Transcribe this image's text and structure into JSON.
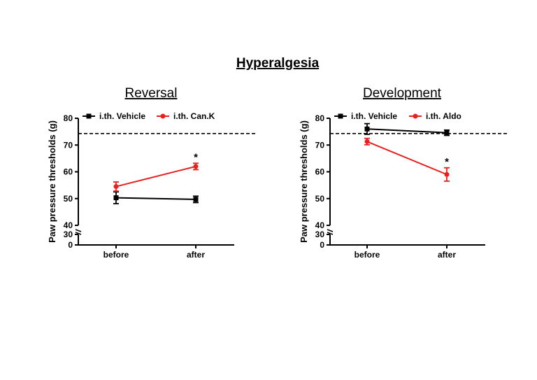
{
  "page_title": "Hyperalgesia",
  "chart_data": [
    {
      "type": "line",
      "title": "Reversal",
      "xlabel": "",
      "ylabel": "Paw pressure thresholds (g)",
      "categories": [
        "before",
        "after"
      ],
      "y_break": {
        "lower_range": [
          0,
          30
        ],
        "upper_range": [
          40,
          80
        ]
      },
      "y_ticks": [
        0,
        30,
        40,
        50,
        60,
        70,
        80
      ],
      "reference_line": 74.3,
      "legend_position": "top",
      "series": [
        {
          "name": "i.th. Vehicle",
          "color": "#000000",
          "marker": "square",
          "values": [
            50.3,
            49.7
          ],
          "errors": [
            2.2,
            1.2
          ]
        },
        {
          "name": "i.th. Can.K",
          "color": "#e8201f",
          "marker": "circle",
          "values": [
            54.5,
            62.0
          ],
          "errors": [
            1.7,
            1.2
          ]
        }
      ],
      "annotations": [
        {
          "text": "*",
          "category": "after",
          "series": 1
        }
      ]
    },
    {
      "type": "line",
      "title": "Development",
      "xlabel": "",
      "ylabel": "Paw pressure thresholds (g)",
      "categories": [
        "before",
        "after"
      ],
      "y_break": {
        "lower_range": [
          0,
          30
        ],
        "upper_range": [
          40,
          80
        ]
      },
      "y_ticks": [
        0,
        30,
        40,
        50,
        60,
        70,
        80
      ],
      "reference_line": 74.3,
      "legend_position": "top",
      "series": [
        {
          "name": "i.th. Vehicle",
          "color": "#000000",
          "marker": "square",
          "values": [
            76.0,
            74.6
          ],
          "errors": [
            2.0,
            1.0
          ]
        },
        {
          "name": "i.th. Aldo",
          "color": "#e8201f",
          "marker": "circle",
          "values": [
            71.3,
            59.0
          ],
          "errors": [
            1.2,
            2.5
          ]
        }
      ],
      "annotations": [
        {
          "text": "*",
          "category": "after",
          "series": 1
        }
      ]
    }
  ]
}
